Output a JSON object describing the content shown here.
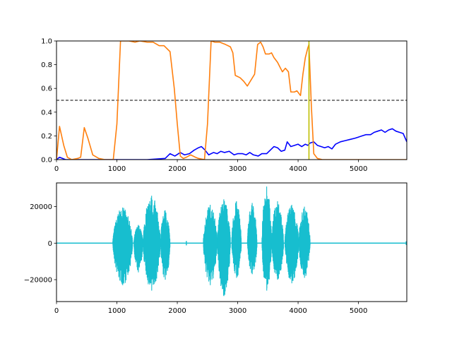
{
  "chart_data": [
    {
      "type": "line",
      "title": "",
      "xlabel": "",
      "ylabel": "",
      "xlim": [
        0,
        5800
      ],
      "ylim": [
        0,
        1.0
      ],
      "grid": false,
      "xticks": [
        0,
        1000,
        2000,
        3000,
        4000,
        5000
      ],
      "xtick_labels": [
        "0",
        "1000",
        "2000",
        "3000",
        "4000",
        "5000"
      ],
      "yticks": [
        0,
        0.2,
        0.4,
        0.6,
        0.8,
        1.0
      ],
      "ytick_labels": [
        "0.0",
        "0.2",
        "0.4",
        "0.6",
        "0.8",
        "1.0"
      ],
      "threshold": {
        "y": 0.5,
        "style": "dashed",
        "color": "#000000"
      },
      "vertical_line": {
        "x": 4180,
        "color": "#bfbf00"
      },
      "series": [
        {
          "color": "#0000ff",
          "points": [
            [
              0,
              0.0
            ],
            [
              50,
              0.02
            ],
            [
              150,
              0.0
            ],
            [
              1000,
              0.0
            ],
            [
              1500,
              0.0
            ],
            [
              1800,
              0.01
            ],
            [
              1880,
              0.05
            ],
            [
              1960,
              0.03
            ],
            [
              2050,
              0.06
            ],
            [
              2120,
              0.04
            ],
            [
              2200,
              0.05
            ],
            [
              2280,
              0.08
            ],
            [
              2350,
              0.1
            ],
            [
              2400,
              0.11
            ],
            [
              2460,
              0.08
            ],
            [
              2520,
              0.04
            ],
            [
              2600,
              0.06
            ],
            [
              2660,
              0.05
            ],
            [
              2720,
              0.07
            ],
            [
              2780,
              0.06
            ],
            [
              2860,
              0.07
            ],
            [
              2940,
              0.04
            ],
            [
              3000,
              0.05
            ],
            [
              3080,
              0.05
            ],
            [
              3140,
              0.04
            ],
            [
              3200,
              0.06
            ],
            [
              3260,
              0.04
            ],
            [
              3340,
              0.03
            ],
            [
              3400,
              0.05
            ],
            [
              3480,
              0.05
            ],
            [
              3540,
              0.08
            ],
            [
              3600,
              0.11
            ],
            [
              3660,
              0.1
            ],
            [
              3720,
              0.07
            ],
            [
              3780,
              0.08
            ],
            [
              3820,
              0.15
            ],
            [
              3880,
              0.11
            ],
            [
              3940,
              0.12
            ],
            [
              4000,
              0.13
            ],
            [
              4060,
              0.11
            ],
            [
              4120,
              0.13
            ],
            [
              4160,
              0.12
            ],
            [
              4200,
              0.14
            ],
            [
              4260,
              0.15
            ],
            [
              4320,
              0.12
            ],
            [
              4380,
              0.11
            ],
            [
              4440,
              0.1
            ],
            [
              4500,
              0.11
            ],
            [
              4560,
              0.09
            ],
            [
              4620,
              0.13
            ],
            [
              4700,
              0.15
            ],
            [
              4780,
              0.16
            ],
            [
              4860,
              0.17
            ],
            [
              4940,
              0.18
            ],
            [
              5000,
              0.19
            ],
            [
              5060,
              0.2
            ],
            [
              5120,
              0.21
            ],
            [
              5200,
              0.21
            ],
            [
              5260,
              0.23
            ],
            [
              5320,
              0.24
            ],
            [
              5380,
              0.25
            ],
            [
              5440,
              0.23
            ],
            [
              5500,
              0.25
            ],
            [
              5560,
              0.26
            ],
            [
              5620,
              0.24
            ],
            [
              5680,
              0.23
            ],
            [
              5740,
              0.22
            ],
            [
              5800,
              0.15
            ]
          ]
        },
        {
          "color": "#ff7f0e",
          "points": [
            [
              0,
              0.0
            ],
            [
              50,
              0.28
            ],
            [
              120,
              0.12
            ],
            [
              180,
              0.02
            ],
            [
              250,
              0.0
            ],
            [
              350,
              0.01
            ],
            [
              400,
              0.02
            ],
            [
              460,
              0.27
            ],
            [
              520,
              0.18
            ],
            [
              600,
              0.04
            ],
            [
              700,
              0.01
            ],
            [
              800,
              0.0
            ],
            [
              940,
              0.0
            ],
            [
              1000,
              0.3
            ],
            [
              1060,
              1.0
            ],
            [
              1120,
              1.0
            ],
            [
              1200,
              1.0
            ],
            [
              1300,
              0.99
            ],
            [
              1380,
              1.0
            ],
            [
              1500,
              0.99
            ],
            [
              1600,
              0.99
            ],
            [
              1700,
              0.96
            ],
            [
              1780,
              0.96
            ],
            [
              1880,
              0.91
            ],
            [
              1950,
              0.6
            ],
            [
              2000,
              0.3
            ],
            [
              2050,
              0.03
            ],
            [
              2100,
              0.01
            ],
            [
              2150,
              0.02
            ],
            [
              2220,
              0.04
            ],
            [
              2300,
              0.02
            ],
            [
              2350,
              0.01
            ],
            [
              2450,
              0.0
            ],
            [
              2500,
              0.3
            ],
            [
              2560,
              1.0
            ],
            [
              2620,
              0.99
            ],
            [
              2700,
              0.99
            ],
            [
              2800,
              0.97
            ],
            [
              2880,
              0.95
            ],
            [
              2920,
              0.9
            ],
            [
              2960,
              0.71
            ],
            [
              3040,
              0.69
            ],
            [
              3100,
              0.66
            ],
            [
              3160,
              0.62
            ],
            [
              3220,
              0.67
            ],
            [
              3280,
              0.72
            ],
            [
              3330,
              0.97
            ],
            [
              3380,
              0.99
            ],
            [
              3420,
              0.95
            ],
            [
              3460,
              0.89
            ],
            [
              3520,
              0.89
            ],
            [
              3560,
              0.9
            ],
            [
              3600,
              0.86
            ],
            [
              3660,
              0.82
            ],
            [
              3700,
              0.78
            ],
            [
              3740,
              0.74
            ],
            [
              3790,
              0.77
            ],
            [
              3840,
              0.74
            ],
            [
              3880,
              0.57
            ],
            [
              3940,
              0.57
            ],
            [
              3980,
              0.58
            ],
            [
              4040,
              0.54
            ],
            [
              4080,
              0.72
            ],
            [
              4120,
              0.86
            ],
            [
              4160,
              0.94
            ],
            [
              4180,
              0.97
            ],
            [
              4220,
              0.45
            ],
            [
              4260,
              0.05
            ],
            [
              4320,
              0.01
            ],
            [
              4400,
              0.0
            ],
            [
              5000,
              0.0
            ],
            [
              5800,
              0.0
            ]
          ]
        }
      ]
    },
    {
      "type": "line",
      "title": "",
      "xlabel": "",
      "ylabel": "",
      "xlim": [
        0,
        5800
      ],
      "ylim": [
        -32000,
        33000
      ],
      "grid": false,
      "xticks": [
        0,
        1000,
        2000,
        3000,
        4000,
        5000
      ],
      "xtick_labels": [
        "0",
        "1000",
        "2000",
        "3000",
        "4000",
        "5000"
      ],
      "yticks": [
        -20000,
        0,
        20000
      ],
      "ytick_labels": [
        "−20000",
        "0",
        "20000"
      ],
      "series": [
        {
          "color": "#17becf",
          "waveform": "audio",
          "active_regions": [
            {
              "x0": 930,
              "x1": 1260,
              "pos": 19500,
              "neg": -23000
            },
            {
              "x0": 1280,
              "x1": 1430,
              "pos": 10000,
              "neg": -16000
            },
            {
              "x0": 1430,
              "x1": 1720,
              "pos": 26000,
              "neg": -26000
            },
            {
              "x0": 1720,
              "x1": 1880,
              "pos": 18000,
              "neg": -20000
            },
            {
              "x0": 2430,
              "x1": 2660,
              "pos": 21000,
              "neg": -23000
            },
            {
              "x0": 2660,
              "x1": 2880,
              "pos": 24000,
              "neg": -29000
            },
            {
              "x0": 2900,
              "x1": 3060,
              "pos": 23000,
              "neg": -19000
            },
            {
              "x0": 3160,
              "x1": 3320,
              "pos": 22000,
              "neg": -17000
            },
            {
              "x0": 3400,
              "x1": 3560,
              "pos": 31000,
              "neg": -26000
            },
            {
              "x0": 3560,
              "x1": 3760,
              "pos": 23000,
              "neg": -20000
            },
            {
              "x0": 3780,
              "x1": 4010,
              "pos": 21000,
              "neg": -22000
            },
            {
              "x0": 4010,
              "x1": 4200,
              "pos": 20000,
              "neg": -19000
            }
          ],
          "small_blips": [
            {
              "x": 2150,
              "amp": 1200
            },
            {
              "x": 5790,
              "amp": 1000
            }
          ]
        }
      ]
    }
  ]
}
